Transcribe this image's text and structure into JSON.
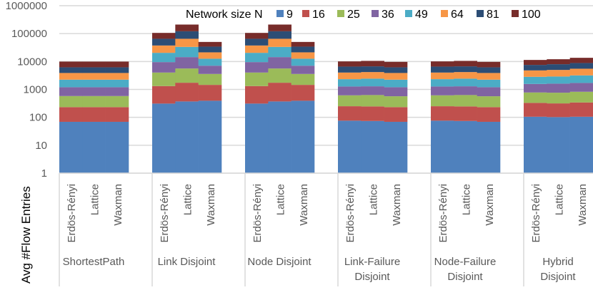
{
  "chart_data": {
    "type": "bar",
    "stacked": true,
    "y_scale": "log",
    "ylim": [
      1,
      1000000
    ],
    "yticks": [
      "1",
      "10",
      "100",
      "1000",
      "10000",
      "100000",
      "1000000"
    ],
    "ylabel": "Avg #Flow Entries",
    "grid": true,
    "legend": {
      "title": "Network size N",
      "placement": "top-right"
    },
    "groups": [
      "ShortestPath",
      "Link Disjoint",
      "Node Disjoint",
      "Link-Failure Disjoint",
      "Node-Failure Disjoint",
      "Hybrid Disjoint"
    ],
    "group_label_lines": [
      [
        "ShortestPath"
      ],
      [
        "Link Disjoint"
      ],
      [
        "Node Disjoint"
      ],
      [
        "Link-Failure",
        "Disjoint"
      ],
      [
        "Node-Failure",
        "Disjoint"
      ],
      [
        "Hybrid",
        "Disjoint"
      ]
    ],
    "categories": [
      "Erdös-Rényi",
      "Lattice",
      "Waxman"
    ],
    "series_names": [
      "9",
      "16",
      "25",
      "36",
      "49",
      "64",
      "81",
      "100"
    ],
    "colors": [
      "#4F81BD",
      "#C0504D",
      "#9BBB59",
      "#8064A2",
      "#4BACC6",
      "#F79646",
      "#2C4D75",
      "#772C2A"
    ],
    "values": [
      [
        [
          69,
          163,
          347,
          621,
          1036,
          1646,
          2328,
          3730
        ],
        [
          69,
          163,
          347,
          621,
          1036,
          1646,
          2328,
          3730
        ],
        [
          69,
          163,
          347,
          621,
          1036,
          1646,
          2328,
          3730
        ]
      ],
      [
        [
          311,
          1007,
          2708,
          5514,
          10940,
          17020,
          27700,
          40800
        ],
        [
          371,
          1367,
          3882,
          8780,
          18950,
          31850,
          56200,
          89600
        ],
        [
          393,
          1062,
          2123,
          3502,
          5500,
          8750,
          12810,
          16160
        ]
      ],
      [
        [
          311,
          1007,
          2708,
          5514,
          10940,
          17020,
          27700,
          40800
        ],
        [
          371,
          1367,
          3882,
          8780,
          18950,
          31850,
          56200,
          89600
        ],
        [
          393,
          1062,
          2123,
          3502,
          5500,
          8750,
          12810,
          16160
        ]
      ],
      [
        [
          76,
          174,
          364,
          659,
          1057,
          1695,
          2565,
          3510
        ],
        [
          74,
          172,
          383,
          666,
          1135,
          1760,
          2520,
          3830
        ],
        [
          69,
          163,
          337,
          631,
          1036,
          1646,
          2328,
          3500
        ]
      ],
      [
        [
          76,
          174,
          364,
          659,
          1057,
          1695,
          2565,
          3510
        ],
        [
          74,
          172,
          383,
          666,
          1135,
          1760,
          2520,
          3830
        ],
        [
          69,
          163,
          337,
          631,
          1036,
          1646,
          2328,
          3500
        ]
      ],
      [
        [
          105,
          225,
          447,
          795,
          1258,
          1970,
          2750,
          3830
        ],
        [
          102,
          214,
          447,
          847,
          1290,
          2100,
          3000,
          4080
        ],
        [
          105,
          236,
          483,
          883,
          1477,
          2336,
          3320,
          4740
        ]
      ]
    ]
  }
}
